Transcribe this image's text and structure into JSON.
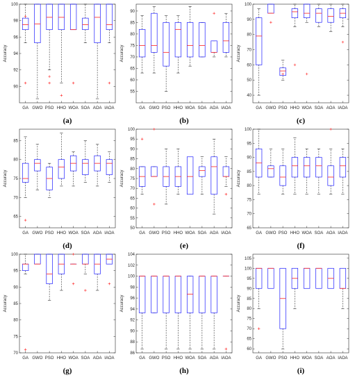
{
  "colors": {
    "box": "#1f1fff",
    "median": "#ff2020",
    "whisker": "#000000",
    "outlier": "#ff2020",
    "axis": "#262626"
  },
  "chart_data": [
    {
      "type": "boxplot",
      "caption": "(a)",
      "ylabel": "Accuracy",
      "categories": [
        "GA",
        "GWO",
        "PSO",
        "HHO",
        "WOA",
        "SOA",
        "AOA",
        "IAOA"
      ],
      "ylim": [
        88,
        100
      ],
      "yticks": [
        90,
        92,
        94,
        96,
        98,
        100
      ],
      "boxes": [
        {
          "min": 95.3,
          "q1": 96.9,
          "median": 97.5,
          "q3": 98.3,
          "max": 100,
          "outliers": [
            90.4,
            98.5
          ]
        },
        {
          "min": 88.5,
          "q1": 95.3,
          "median": 97.6,
          "q3": 100,
          "max": 100,
          "outliers": []
        },
        {
          "min": 92.0,
          "q1": 96.9,
          "median": 98.4,
          "q3": 100,
          "max": 100,
          "outliers": [
            90.4,
            91.2
          ]
        },
        {
          "min": 90.4,
          "q1": 96.9,
          "median": 98.4,
          "q3": 100,
          "max": 100,
          "outliers": [
            88.9
          ]
        },
        {
          "min": 96.9,
          "q1": 96.9,
          "median": 96.9,
          "q3": 100,
          "max": 100,
          "outliers": [
            90.4
          ]
        },
        {
          "min": 95.3,
          "q1": 96.9,
          "median": 97.5,
          "q3": 98.3,
          "max": 100,
          "outliers": []
        },
        {
          "min": 88.5,
          "q1": 95.3,
          "median": 98.4,
          "q3": 100,
          "max": 100,
          "outliers": []
        },
        {
          "min": 95.3,
          "q1": 96.9,
          "median": 97.5,
          "q3": 100,
          "max": 100,
          "outliers": [
            90.4
          ]
        }
      ]
    },
    {
      "type": "boxplot",
      "caption": "(b)",
      "ylabel": "Accuracy",
      "categories": [
        "GA",
        "GWO",
        "PSO",
        "HHO",
        "WOA",
        "SOA",
        "AOA",
        "IAOA"
      ],
      "ylim": [
        50,
        93
      ],
      "yticks": [
        55,
        60,
        65,
        70,
        75,
        80,
        85,
        90
      ],
      "boxes": [
        {
          "min": 63,
          "q1": 70,
          "median": 75,
          "q3": 82,
          "max": 88,
          "outliers": []
        },
        {
          "min": 63,
          "q1": 72,
          "median": 75,
          "q3": 89,
          "max": 92,
          "outliers": []
        },
        {
          "min": 55,
          "q1": 66,
          "median": 72,
          "q3": 85,
          "max": 88,
          "outliers": []
        },
        {
          "min": 63,
          "q1": 70,
          "median": 82,
          "q3": 85,
          "max": 88,
          "outliers": []
        },
        {
          "min": 66,
          "q1": 70,
          "median": 75,
          "q3": 85,
          "max": 92,
          "outliers": []
        },
        {
          "min": 70,
          "q1": 70,
          "median": 75,
          "q3": 85,
          "max": 85,
          "outliers": []
        },
        {
          "min": 70,
          "q1": 72,
          "median": 72,
          "q3": 77,
          "max": 77,
          "outliers": [
            89
          ]
        },
        {
          "min": 70,
          "q1": 72,
          "median": 77,
          "q3": 85,
          "max": 89,
          "outliers": []
        }
      ]
    },
    {
      "type": "boxplot",
      "caption": "(c)",
      "ylabel": "Accuracy",
      "categories": [
        "GA",
        "GWO",
        "PSO",
        "HHO",
        "WOA",
        "SOA",
        "AOA",
        "IAOA"
      ],
      "ylim": [
        35,
        100
      ],
      "yticks": [
        40,
        50,
        60,
        70,
        80,
        90,
        100
      ],
      "boxes": [
        {
          "min": 40,
          "q1": 60,
          "median": 79,
          "q3": 91,
          "max": 97,
          "outliers": []
        },
        {
          "min": 94,
          "q1": 94,
          "median": 94,
          "q3": 100,
          "max": 100,
          "outliers": [
            88
          ]
        },
        {
          "min": 50,
          "q1": 53,
          "median": 56,
          "q3": 58,
          "max": 63,
          "outliers": [
            54
          ]
        },
        {
          "min": 85,
          "q1": 91,
          "median": 95,
          "q3": 97,
          "max": 100,
          "outliers": [
            60
          ]
        },
        {
          "min": 88,
          "q1": 91,
          "median": 94,
          "q3": 100,
          "max": 100,
          "outliers": [
            54
          ]
        },
        {
          "min": 85,
          "q1": 88,
          "median": 94,
          "q3": 97,
          "max": 100,
          "outliers": []
        },
        {
          "min": 82,
          "q1": 88,
          "median": 92,
          "q3": 97,
          "max": 100,
          "outliers": []
        },
        {
          "min": 85,
          "q1": 91,
          "median": 94,
          "q3": 97,
          "max": 100,
          "outliers": [
            75
          ]
        }
      ]
    },
    {
      "type": "boxplot",
      "caption": "(d)",
      "ylabel": "Accuracy",
      "categories": [
        "GA",
        "GWO",
        "PSO",
        "HHO",
        "WOA",
        "SOA",
        "AOA",
        "IAOA"
      ],
      "ylim": [
        62,
        88
      ],
      "yticks": [
        65,
        70,
        75,
        80,
        85
      ],
      "boxes": [
        {
          "min": 70,
          "q1": 74,
          "median": 75,
          "q3": 79,
          "max": 86,
          "outliers": [
            64
          ]
        },
        {
          "min": 72,
          "q1": 77,
          "median": 79,
          "q3": 80,
          "max": 84,
          "outliers": []
        },
        {
          "min": 70,
          "q1": 72,
          "median": 75,
          "q3": 78,
          "max": 79,
          "outliers": []
        },
        {
          "min": 73,
          "q1": 75,
          "median": 78,
          "q3": 80,
          "max": 87,
          "outliers": []
        },
        {
          "min": 73,
          "q1": 77,
          "median": 79,
          "q3": 81,
          "max": 82,
          "outliers": []
        },
        {
          "min": 74,
          "q1": 76,
          "median": 79,
          "q3": 80,
          "max": 85,
          "outliers": []
        },
        {
          "min": 73,
          "q1": 77,
          "median": 79,
          "q3": 81,
          "max": 84,
          "outliers": []
        },
        {
          "min": 74,
          "q1": 76,
          "median": 79,
          "q3": 80,
          "max": 82,
          "outliers": []
        }
      ]
    },
    {
      "type": "boxplot",
      "caption": "(e)",
      "ylabel": "Accuracy",
      "categories": [
        "GA",
        "GWO",
        "PSO",
        "HHO",
        "WOA",
        "SOA",
        "AOA",
        "IAOA"
      ],
      "ylim": [
        50,
        100
      ],
      "yticks": [
        50,
        55,
        60,
        65,
        70,
        75,
        80,
        85,
        90,
        95,
        100
      ],
      "boxes": [
        {
          "min": 67,
          "q1": 71,
          "median": 76,
          "q3": 81,
          "max": 81,
          "outliers": [
            95
          ]
        },
        {
          "min": 76,
          "q1": 76,
          "median": 76,
          "q3": 81,
          "max": 81,
          "outliers": [
            100,
            62
          ]
        },
        {
          "min": 62,
          "q1": 71,
          "median": 76,
          "q3": 81,
          "max": 90,
          "outliers": []
        },
        {
          "min": 67,
          "q1": 71,
          "median": 76,
          "q3": 81,
          "max": 90,
          "outliers": []
        },
        {
          "min": 67,
          "q1": 67,
          "median": 76,
          "q3": 86,
          "max": 86,
          "outliers": []
        },
        {
          "min": 67,
          "q1": 76,
          "median": 79,
          "q3": 81,
          "max": 86,
          "outliers": []
        },
        {
          "min": 57,
          "q1": 67,
          "median": 81,
          "q3": 86,
          "max": 95,
          "outliers": []
        },
        {
          "min": 71,
          "q1": 76,
          "median": 76,
          "q3": 81,
          "max": 86,
          "outliers": [
            67
          ]
        }
      ]
    },
    {
      "type": "boxplot",
      "caption": "(f)",
      "ylabel": "Accuracy",
      "categories": [
        "GA",
        "GWO",
        "PSO",
        "HHO",
        "WOA",
        "SOA",
        "AOA",
        "IAOA"
      ],
      "ylim": [
        65,
        100
      ],
      "yticks": [
        65,
        70,
        75,
        80,
        85,
        90,
        95,
        100
      ],
      "boxes": [
        {
          "min": 77,
          "q1": 83,
          "median": 88,
          "q3": 93,
          "max": 100,
          "outliers": []
        },
        {
          "min": 83,
          "q1": 83,
          "median": 86,
          "q3": 87,
          "max": 93,
          "outliers": []
        },
        {
          "min": 77,
          "q1": 80,
          "median": 83,
          "q3": 87,
          "max": 93,
          "outliers": []
        },
        {
          "min": 77,
          "q1": 83,
          "median": 87,
          "q3": 90,
          "max": 97,
          "outliers": []
        },
        {
          "min": 77,
          "q1": 83,
          "median": 87,
          "q3": 90,
          "max": 93,
          "outliers": []
        },
        {
          "min": 77,
          "q1": 83,
          "median": 87,
          "q3": 90,
          "max": 93,
          "outliers": []
        },
        {
          "min": 77,
          "q1": 80,
          "median": 83,
          "q3": 87,
          "max": 93,
          "outliers": [
            100
          ]
        },
        {
          "min": 77,
          "q1": 83,
          "median": 87,
          "q3": 90,
          "max": 93,
          "outliers": []
        }
      ]
    },
    {
      "type": "boxplot",
      "caption": "(g)",
      "ylabel": "Accuracy",
      "categories": [
        "GA",
        "GWO",
        "PSO",
        "HHO",
        "WOA",
        "SOA",
        "AOA",
        "IAOA"
      ],
      "ylim": [
        70,
        100
      ],
      "yticks": [
        70,
        75,
        80,
        85,
        90,
        95,
        100
      ],
      "boxes": [
        {
          "min": 94,
          "q1": 95,
          "median": 97,
          "q3": 97,
          "max": 100,
          "outliers": [
            71
          ]
        },
        {
          "min": 97,
          "q1": 97,
          "median": 97,
          "q3": 100,
          "max": 100,
          "outliers": []
        },
        {
          "min": 86,
          "q1": 91,
          "median": 94,
          "q3": 100,
          "max": 100,
          "outliers": []
        },
        {
          "min": 89,
          "q1": 94,
          "median": 97,
          "q3": 100,
          "max": 100,
          "outliers": []
        },
        {
          "min": 97,
          "q1": 97,
          "median": 97,
          "q3": 97,
          "max": 97,
          "outliers": [
            100,
            91
          ]
        },
        {
          "min": 94,
          "q1": 97,
          "median": 97,
          "q3": 100,
          "max": 100,
          "outliers": [
            89
          ]
        },
        {
          "min": 89,
          "q1": 94,
          "median": 97,
          "q3": 100,
          "max": 100,
          "outliers": []
        },
        {
          "min": 97,
          "q1": 97,
          "median": 98.5,
          "q3": 100,
          "max": 100,
          "outliers": [
            91
          ]
        }
      ]
    },
    {
      "type": "boxplot",
      "caption": "(h)",
      "ylabel": "Accuracy",
      "categories": [
        "GA",
        "GWO",
        "PSO",
        "HHO",
        "WOA",
        "SOA",
        "AOA",
        "IAOA"
      ],
      "ylim": [
        86,
        104
      ],
      "yticks": [
        86,
        88,
        90,
        92,
        94,
        96,
        98,
        100,
        102,
        104
      ],
      "boxes": [
        {
          "min": 86.7,
          "q1": 93.3,
          "median": 100,
          "q3": 100,
          "max": 100,
          "outliers": []
        },
        {
          "min": 93.3,
          "q1": 93.3,
          "median": 100,
          "q3": 100,
          "max": 100,
          "outliers": []
        },
        {
          "min": 86.7,
          "q1": 93.3,
          "median": 100,
          "q3": 100,
          "max": 100,
          "outliers": []
        },
        {
          "min": 86.7,
          "q1": 93.3,
          "median": 100,
          "q3": 100,
          "max": 100,
          "outliers": []
        },
        {
          "min": 86.7,
          "q1": 93.3,
          "median": 96.7,
          "q3": 100,
          "max": 100,
          "outliers": []
        },
        {
          "min": 86.7,
          "q1": 93.3,
          "median": 100,
          "q3": 100,
          "max": 100,
          "outliers": []
        },
        {
          "min": 86.7,
          "q1": 93.3,
          "median": 100,
          "q3": 100,
          "max": 100,
          "outliers": []
        },
        {
          "min": 100,
          "q1": 100,
          "median": 100,
          "q3": 100,
          "max": 100,
          "outliers": [
            86.7
          ]
        }
      ]
    },
    {
      "type": "boxplot",
      "caption": "(i)",
      "ylabel": "Accuracy",
      "categories": [
        "GA",
        "GWO",
        "PSO",
        "HHO",
        "WOA",
        "SOA",
        "AOA",
        "IAOA"
      ],
      "ylim": [
        58,
        107
      ],
      "yticks": [
        60,
        65,
        70,
        75,
        80,
        85,
        90,
        95,
        100,
        105
      ],
      "boxes": [
        {
          "min": 80,
          "q1": 90,
          "median": 100,
          "q3": 100,
          "max": 100,
          "outliers": [
            70
          ]
        },
        {
          "min": 90,
          "q1": 90,
          "median": 100,
          "q3": 100,
          "max": 100,
          "outliers": []
        },
        {
          "min": 60,
          "q1": 70,
          "median": 85,
          "q3": 100,
          "max": 100,
          "outliers": []
        },
        {
          "min": 80,
          "q1": 90,
          "median": 95,
          "q3": 100,
          "max": 100,
          "outliers": []
        },
        {
          "min": 90,
          "q1": 90,
          "median": 100,
          "q3": 100,
          "max": 100,
          "outliers": []
        },
        {
          "min": 90,
          "q1": 90,
          "median": 100,
          "q3": 100,
          "max": 100,
          "outliers": []
        },
        {
          "min": 90,
          "q1": 90,
          "median": 95,
          "q3": 100,
          "max": 100,
          "outliers": []
        },
        {
          "min": 80,
          "q1": 90,
          "median": 90,
          "q3": 100,
          "max": 100,
          "outliers": []
        }
      ]
    }
  ]
}
